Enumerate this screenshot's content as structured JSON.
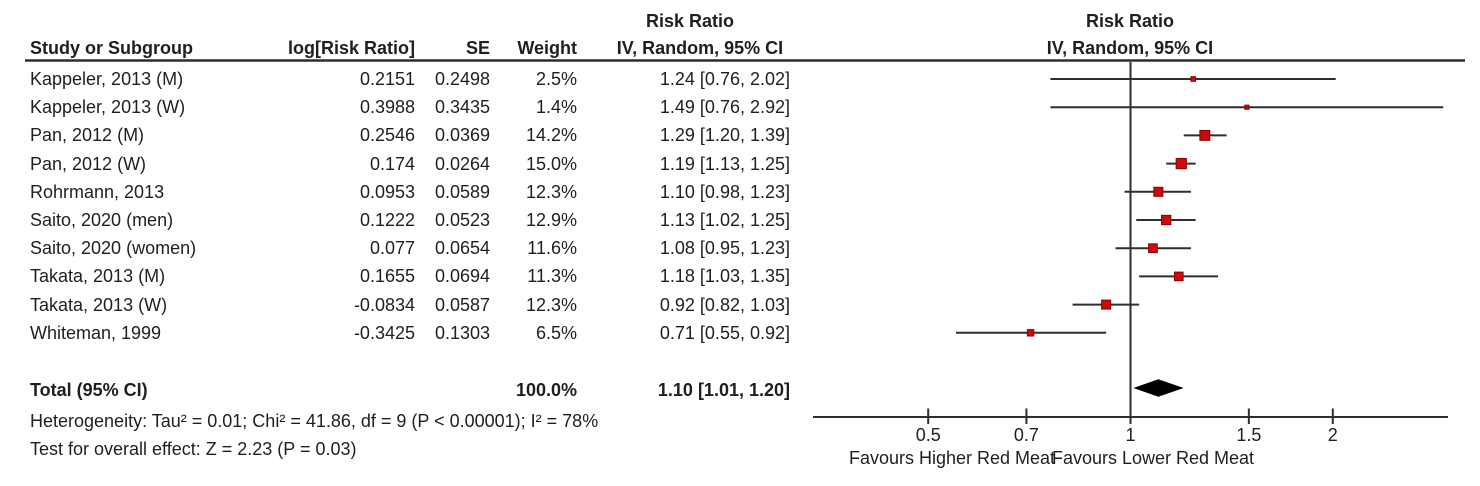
{
  "table": {
    "headers": {
      "study": "Study or Subgroup",
      "log_rr": "log[Risk Ratio]",
      "se": "SE",
      "weight": "Weight",
      "effect_line1": "Risk Ratio",
      "effect_line2": "IV, Random, 95% CI"
    },
    "plot_header": {
      "line1": "Risk Ratio",
      "line2": "IV, Random, 95% CI"
    },
    "rows": [
      {
        "name": "Kappeler, 2013 (M)",
        "log_rr": "0.2151",
        "se": "0.2498",
        "weight": "2.5%",
        "estimate": "1.24 [0.76, 2.02]",
        "rr": 1.24,
        "ci_low": 0.76,
        "ci_high": 2.02,
        "weight_num": 2.5
      },
      {
        "name": "Kappeler, 2013 (W)",
        "log_rr": "0.3988",
        "se": "0.3435",
        "weight": "1.4%",
        "estimate": "1.49 [0.76, 2.92]",
        "rr": 1.49,
        "ci_low": 0.76,
        "ci_high": 2.92,
        "weight_num": 1.4
      },
      {
        "name": "Pan, 2012 (M)",
        "log_rr": "0.2546",
        "se": "0.0369",
        "weight": "14.2%",
        "estimate": "1.29 [1.20, 1.39]",
        "rr": 1.29,
        "ci_low": 1.2,
        "ci_high": 1.39,
        "weight_num": 14.2
      },
      {
        "name": "Pan, 2012 (W)",
        "log_rr": "0.174",
        "se": "0.0264",
        "weight": "15.0%",
        "estimate": "1.19 [1.13, 1.25]",
        "rr": 1.19,
        "ci_low": 1.13,
        "ci_high": 1.25,
        "weight_num": 15.0
      },
      {
        "name": "Rohrmann, 2013",
        "log_rr": "0.0953",
        "se": "0.0589",
        "weight": "12.3%",
        "estimate": "1.10 [0.98, 1.23]",
        "rr": 1.1,
        "ci_low": 0.98,
        "ci_high": 1.23,
        "weight_num": 12.3
      },
      {
        "name": "Saito, 2020 (men)",
        "log_rr": "0.1222",
        "se": "0.0523",
        "weight": "12.9%",
        "estimate": "1.13 [1.02, 1.25]",
        "rr": 1.13,
        "ci_low": 1.02,
        "ci_high": 1.25,
        "weight_num": 12.9
      },
      {
        "name": "Saito, 2020 (women)",
        "log_rr": "0.077",
        "se": "0.0654",
        "weight": "11.6%",
        "estimate": "1.08 [0.95, 1.23]",
        "rr": 1.08,
        "ci_low": 0.95,
        "ci_high": 1.23,
        "weight_num": 11.6
      },
      {
        "name": "Takata, 2013 (M)",
        "log_rr": "0.1655",
        "se": "0.0694",
        "weight": "11.3%",
        "estimate": "1.18 [1.03, 1.35]",
        "rr": 1.18,
        "ci_low": 1.03,
        "ci_high": 1.35,
        "weight_num": 11.3
      },
      {
        "name": "Takata, 2013 (W)",
        "log_rr": "-0.0834",
        "se": "0.0587",
        "weight": "12.3%",
        "estimate": "0.92 [0.82, 1.03]",
        "rr": 0.92,
        "ci_low": 0.82,
        "ci_high": 1.03,
        "weight_num": 12.3
      },
      {
        "name": "Whiteman, 1999",
        "log_rr": "-0.3425",
        "se": "0.1303",
        "weight": "6.5%",
        "estimate": "0.71 [0.55, 0.92]",
        "rr": 0.71,
        "ci_low": 0.55,
        "ci_high": 0.92,
        "weight_num": 6.5
      }
    ],
    "total": {
      "label": "Total (95% CI)",
      "weight": "100.0%",
      "estimate": "1.10 [1.01, 1.20]",
      "rr": 1.1,
      "ci_low": 1.01,
      "ci_high": 1.2
    },
    "heterogeneity": "Heterogeneity: Tau² = 0.01; Chi² = 41.86, df = 9 (P < 0.00001); I² = 78%",
    "overall_effect": "Test for overall effect: Z = 2.23 (P = 0.03)"
  },
  "axis": {
    "ticks": [
      0.5,
      0.7,
      1,
      1.5,
      2
    ],
    "tick_labels": [
      "0.5",
      "0.7",
      "1",
      "1.5",
      "2"
    ],
    "favours_left": "Favours Higher Red Meat",
    "favours_right": "Favours Lower Red Meat"
  },
  "colors": {
    "marker_fill": "#cc0a0a",
    "marker_border": "#8b0000",
    "diamond": "#000000",
    "line": "#2e2e2e",
    "text": "#1f1f1f"
  },
  "chart_data": {
    "type": "scatter",
    "subtype": "forest-plot-meta-analysis",
    "title": "Risk Ratio IV, Random, 95% CI",
    "xscale": "log",
    "xticks": [
      0.5,
      0.7,
      1,
      1.5,
      2
    ],
    "x_axis_range_approx": [
      0.34,
      2.97
    ],
    "no_effect_line": 1,
    "direction_labels": {
      "left": "Favours Higher Red Meat",
      "right": "Favours Lower Red Meat"
    },
    "studies": [
      "Kappeler, 2013 (M)",
      "Kappeler, 2013 (W)",
      "Pan, 2012 (M)",
      "Pan, 2012 (W)",
      "Rohrmann, 2013",
      "Saito, 2020 (men)",
      "Saito, 2020 (women)",
      "Takata, 2013 (M)",
      "Takata, 2013 (W)",
      "Whiteman, 1999"
    ],
    "log_rr": [
      0.2151,
      0.3988,
      0.2546,
      0.174,
      0.0953,
      0.1222,
      0.077,
      0.1655,
      -0.0834,
      -0.3425
    ],
    "se": [
      0.2498,
      0.3435,
      0.0369,
      0.0264,
      0.0589,
      0.0523,
      0.0654,
      0.0694,
      0.0587,
      0.1303
    ],
    "weight_pct": [
      2.5,
      1.4,
      14.2,
      15.0,
      12.3,
      12.9,
      11.6,
      11.3,
      12.3,
      6.5
    ],
    "rr": [
      1.24,
      1.49,
      1.29,
      1.19,
      1.1,
      1.13,
      1.08,
      1.18,
      0.92,
      0.71
    ],
    "ci_low": [
      0.76,
      0.76,
      1.2,
      1.13,
      0.98,
      1.02,
      0.95,
      1.03,
      0.82,
      0.55
    ],
    "ci_high": [
      2.02,
      2.92,
      1.39,
      1.25,
      1.23,
      1.25,
      1.23,
      1.35,
      1.03,
      0.92
    ],
    "total": {
      "label": "Total (95% CI)",
      "weight_pct": 100.0,
      "rr": 1.1,
      "ci_low": 1.01,
      "ci_high": 1.2
    },
    "heterogeneity": {
      "tau2": 0.01,
      "chi2": 41.86,
      "df": 9,
      "p": "< 0.00001",
      "i2_pct": 78
    },
    "overall_effect": {
      "z": 2.23,
      "p": 0.03
    }
  }
}
